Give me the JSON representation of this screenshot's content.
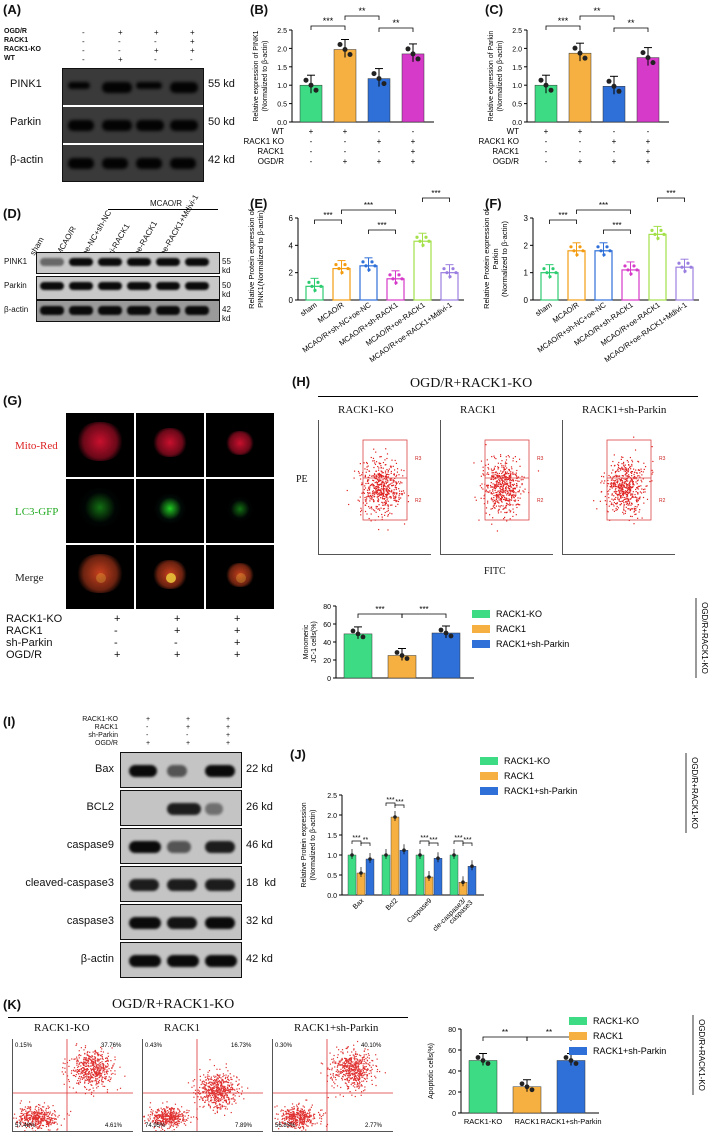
{
  "panels": {
    "A": {
      "label": "(A)",
      "cond_rows": [
        "OGD/R",
        "RACK1",
        "RACK1-KO",
        "WT"
      ],
      "signs": [
        [
          "-",
          "+",
          "+",
          "+"
        ],
        [
          "-",
          "-",
          "-",
          "+"
        ],
        [
          "-",
          "-",
          "+",
          "+"
        ],
        [
          "-",
          "+",
          "-",
          "-"
        ]
      ],
      "bands": [
        {
          "name": "PINK1",
          "kd": "55 kd"
        },
        {
          "name": "Parkin",
          "kd": "50 kd"
        },
        {
          "name": "β-actin",
          "kd": "42 kd"
        }
      ]
    },
    "B": {
      "label": "(B)"
    },
    "C": {
      "label": "(C)"
    },
    "D": {
      "label": "(D)",
      "header": "MCAO/R",
      "lanes": [
        "sham",
        "MCAO/R",
        "oe-NC+sh-NC",
        "si-RACK1",
        "oe-RACK1",
        "oe-RACK1+Mdivi-1"
      ],
      "bands": [
        {
          "name": "PINK1",
          "kd": "55 kd"
        },
        {
          "name": "Parkin",
          "kd": "50 kd"
        },
        {
          "name": "β-actin",
          "kd": "42 kd"
        }
      ]
    },
    "E": {
      "label": "(E)"
    },
    "F": {
      "label": "(F)"
    },
    "G": {
      "label": "(G)",
      "rows": [
        "Mito-Red",
        "LC3-GFP",
        "Merge"
      ],
      "cond_rows": [
        "RACK1-KO",
        "RACK1",
        "sh-Parkin",
        "OGD/R"
      ],
      "signs": [
        [
          "+",
          "+",
          "+"
        ],
        [
          "-",
          "+",
          "+"
        ],
        [
          "-",
          "-",
          "+"
        ],
        [
          "+",
          "+",
          "+"
        ]
      ]
    },
    "H": {
      "label": "(H)",
      "title": "OGD/R+RACK1-KO",
      "plots": [
        "RACK1-KO",
        "RACK1",
        "RACK1+sh-Parkin"
      ],
      "ylab": "PE",
      "xlab": "FITC",
      "gate_top": "R3",
      "gate_bottom": "R2"
    },
    "I": {
      "label": "(I)",
      "cond_rows": [
        "RACK1-KO",
        "RACK1",
        "sh-Parkin",
        "OGD/R"
      ],
      "signs": [
        [
          "+",
          "+",
          "+"
        ],
        [
          "-",
          "+",
          "+"
        ],
        [
          "-",
          "-",
          "+"
        ],
        [
          "+",
          "+",
          "+"
        ]
      ],
      "bands": [
        {
          "name": "Bax",
          "kd": "22 kd"
        },
        {
          "name": "BCL2",
          "kd": "26 kd"
        },
        {
          "name": "caspase9",
          "kd": "46 kd"
        },
        {
          "name": "cleaved-caspase3",
          "kd": "18  kd"
        },
        {
          "name": "caspase3",
          "kd": "32 kd"
        },
        {
          "name": "β-actin",
          "kd": "42 kd"
        }
      ]
    },
    "J": {
      "label": "(J)"
    },
    "K": {
      "label": "(K)",
      "title": "OGD/R+RACK1-KO",
      "plots": [
        "RACK1-KO",
        "RACK1",
        "RACK1+sh-Parkin"
      ],
      "quadrants": [
        [
          "0.15%",
          "37.76%",
          "57.48%",
          "4.61%"
        ],
        [
          "0.43%",
          "16.73%",
          "74.95%",
          "7.89%"
        ],
        [
          "0.30%",
          "40.10%",
          "56.83%",
          "2.77%"
        ]
      ]
    }
  },
  "side_label": "OGD/R+RACK1-KO",
  "chart_data": [
    {
      "id": "B",
      "type": "bar",
      "ylabel": "Relative expression of PINK1\n(Normalized to β-actin)",
      "ylim": [
        0,
        2.5
      ],
      "yticks": [
        0,
        0.5,
        1.0,
        1.5,
        2.0,
        2.5
      ],
      "values": [
        1.0,
        1.97,
        1.18,
        1.85
      ],
      "colors": [
        "#3ddc84",
        "#f5b041",
        "#2e6fd8",
        "#d63ac9"
      ],
      "cond_rows": [
        "WT",
        "RACK1 KO",
        "RACK1",
        "OGD/R"
      ],
      "signs": [
        [
          "+",
          "+",
          "-",
          "-"
        ],
        [
          "-",
          "-",
          "+",
          "+"
        ],
        [
          "-",
          "-",
          "-",
          "+"
        ],
        [
          "-",
          "+",
          "+",
          "+"
        ]
      ],
      "sig": [
        [
          "***",
          0,
          1
        ],
        [
          "**",
          1,
          2
        ],
        [
          "**",
          2,
          3
        ]
      ]
    },
    {
      "id": "C",
      "type": "bar",
      "ylabel": "Relative expression of Parkin\n(Normalized to β-actin)",
      "ylim": [
        0,
        2.5
      ],
      "yticks": [
        0,
        0.5,
        1.0,
        1.5,
        2.0,
        2.5
      ],
      "values": [
        1.0,
        1.87,
        0.97,
        1.75
      ],
      "colors": [
        "#3ddc84",
        "#f5b041",
        "#2e6fd8",
        "#d63ac9"
      ],
      "cond_rows": [
        "WT",
        "RACK1 KO",
        "RACK1",
        "OGD/R"
      ],
      "signs": [
        [
          "+",
          "+",
          "-",
          "-"
        ],
        [
          "-",
          "-",
          "+",
          "+"
        ],
        [
          "-",
          "-",
          "-",
          "+"
        ],
        [
          "-",
          "+",
          "+",
          "+"
        ]
      ],
      "sig": [
        [
          "***",
          0,
          1
        ],
        [
          "**",
          1,
          2
        ],
        [
          "**",
          2,
          3
        ]
      ]
    },
    {
      "id": "E",
      "type": "bar",
      "ylabel": "Relative Protein expression of\nPINK1(Normalized to β-actin)",
      "ylim": [
        0,
        6
      ],
      "yticks": [
        0,
        2,
        4,
        6
      ],
      "categories": [
        "sham",
        "MCAO/R",
        "MCAO/R+sh-NC+oe-NC",
        "MCAO/R+sh-RACK1",
        "MCAO/R+oe-RACK1",
        "MCAO/R+oe-RACK1+Mdivi-1"
      ],
      "values": [
        1.0,
        2.3,
        2.5,
        1.55,
        4.3,
        2.0
      ],
      "colors": [
        "#2ecc71",
        "#f39c12",
        "#2e6fd8",
        "#d63ac9",
        "#a3e04a",
        "#9b7fe0"
      ],
      "sig": [
        [
          "***",
          0,
          1
        ],
        [
          "***",
          1,
          3
        ],
        [
          "***",
          3,
          2
        ],
        [
          "***",
          4,
          5
        ]
      ]
    },
    {
      "id": "F",
      "type": "bar",
      "ylabel": "Relative Protein expression of\nParkin\n(Normalized to β-actin)",
      "ylim": [
        0,
        3
      ],
      "yticks": [
        0,
        1,
        2,
        3
      ],
      "categories": [
        "sham",
        "MCAO/R",
        "MCAO/R+sh-NC+oe-NC",
        "MCAO/R+sh-RACK1",
        "MCAO/R+oe-RACK1",
        "MCAO/R+oe-RACK1+Mdivi-1"
      ],
      "values": [
        1.0,
        1.8,
        1.8,
        1.1,
        2.4,
        1.2
      ],
      "colors": [
        "#2ecc71",
        "#f39c12",
        "#2e6fd8",
        "#d63ac9",
        "#a3e04a",
        "#9b7fe0"
      ],
      "sig": [
        [
          "***",
          0,
          1
        ],
        [
          "***",
          1,
          3
        ],
        [
          "***",
          3,
          2
        ],
        [
          "***",
          4,
          5
        ]
      ]
    },
    {
      "id": "H",
      "type": "bar",
      "ylabel": "Monomeric\nJC-1 cells(%)",
      "ylim": [
        0,
        80
      ],
      "yticks": [
        0,
        20,
        40,
        60,
        80
      ],
      "categories": [
        "RACK1-KO",
        "RACK1",
        "RACK1+sh-Parkin"
      ],
      "values": [
        49,
        25,
        50
      ],
      "colors": [
        "#3ddc84",
        "#f5b041",
        "#2e6fd8"
      ],
      "series_names": [
        "RACK1-KO",
        "RACK1",
        "RACK1+sh-Parkin"
      ],
      "sig": [
        [
          "***",
          0,
          1
        ],
        [
          "***",
          1,
          2
        ]
      ]
    },
    {
      "id": "J",
      "type": "bar",
      "ylabel": "Relative Protein expression\n(Normalized to β-actin)",
      "ylim": [
        0,
        2.5
      ],
      "yticks": [
        0,
        0.5,
        1.0,
        1.5,
        2.0,
        2.5
      ],
      "categories": [
        "Bax",
        "Bcl2",
        "Caspase9",
        "cle-caspase3/\ncaspase3"
      ],
      "series": [
        {
          "name": "RACK1-KO",
          "values": [
            1.0,
            1.0,
            1.0,
            1.0
          ]
        },
        {
          "name": "RACK1",
          "values": [
            0.55,
            1.95,
            0.45,
            0.32
          ]
        },
        {
          "name": "RACK1+sh-Parkin",
          "values": [
            0.9,
            1.12,
            0.92,
            0.72
          ]
        }
      ],
      "colors": [
        "#3ddc84",
        "#f5b041",
        "#2e6fd8"
      ],
      "sig_labels": [
        "***",
        "**",
        "***",
        "***",
        "***",
        "***",
        "***",
        "***"
      ]
    },
    {
      "id": "K",
      "type": "bar",
      "ylabel": "Apoptotic cells(%)",
      "ylim": [
        0,
        80
      ],
      "yticks": [
        0,
        20,
        40,
        60,
        80
      ],
      "categories": [
        "RACK1-KO",
        "RACK1",
        "RACK1+sh-Parkin"
      ],
      "values": [
        50,
        25,
        50
      ],
      "colors": [
        "#3ddc84",
        "#f5b041",
        "#2e6fd8"
      ],
      "series_names": [
        "RACK1-KO",
        "RACK1",
        "RACK1+sh-Parkin"
      ],
      "sig": [
        [
          "**",
          0,
          1
        ],
        [
          "**",
          1,
          2
        ]
      ]
    }
  ]
}
